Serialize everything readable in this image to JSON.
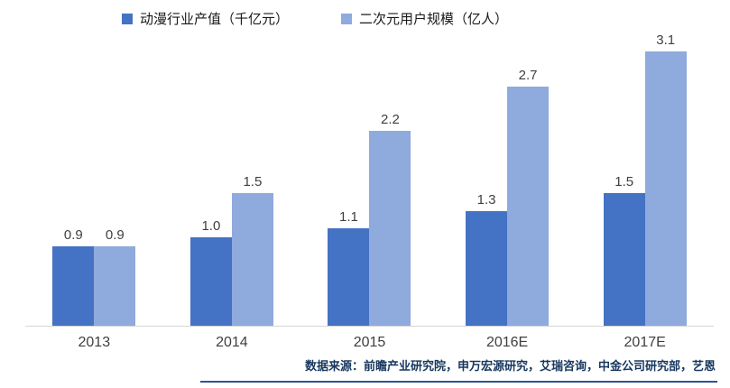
{
  "chart_data": {
    "type": "bar",
    "categories": [
      "2013",
      "2014",
      "2015",
      "2016E",
      "2017E"
    ],
    "series": [
      {
        "name": "动漫行业产值（千亿元）",
        "values": [
          0.9,
          1.0,
          1.1,
          1.3,
          1.5
        ],
        "color": "#4472c4"
      },
      {
        "name": "二次元用户规模（亿人）",
        "values": [
          0.9,
          1.5,
          2.2,
          2.7,
          3.1
        ],
        "color": "#8faadc"
      }
    ],
    "title": "",
    "xlabel": "",
    "ylabel": "",
    "ylim": [
      0,
      3.35
    ],
    "grid": false,
    "legend_position": "top",
    "value_labels": true,
    "value_label_format": "one-decimal",
    "axis_line_color": "#d6d6d6"
  },
  "source": {
    "text": "数据来源：前瞻产业研究院，申万宏源研究，艾瑞咨询，中金公司研究部，艺恩"
  },
  "colors": {
    "series1": "#4472c4",
    "series2": "#8faadc",
    "source_text": "#17375e",
    "divider": "#2e5596",
    "background": "#ffffff"
  }
}
